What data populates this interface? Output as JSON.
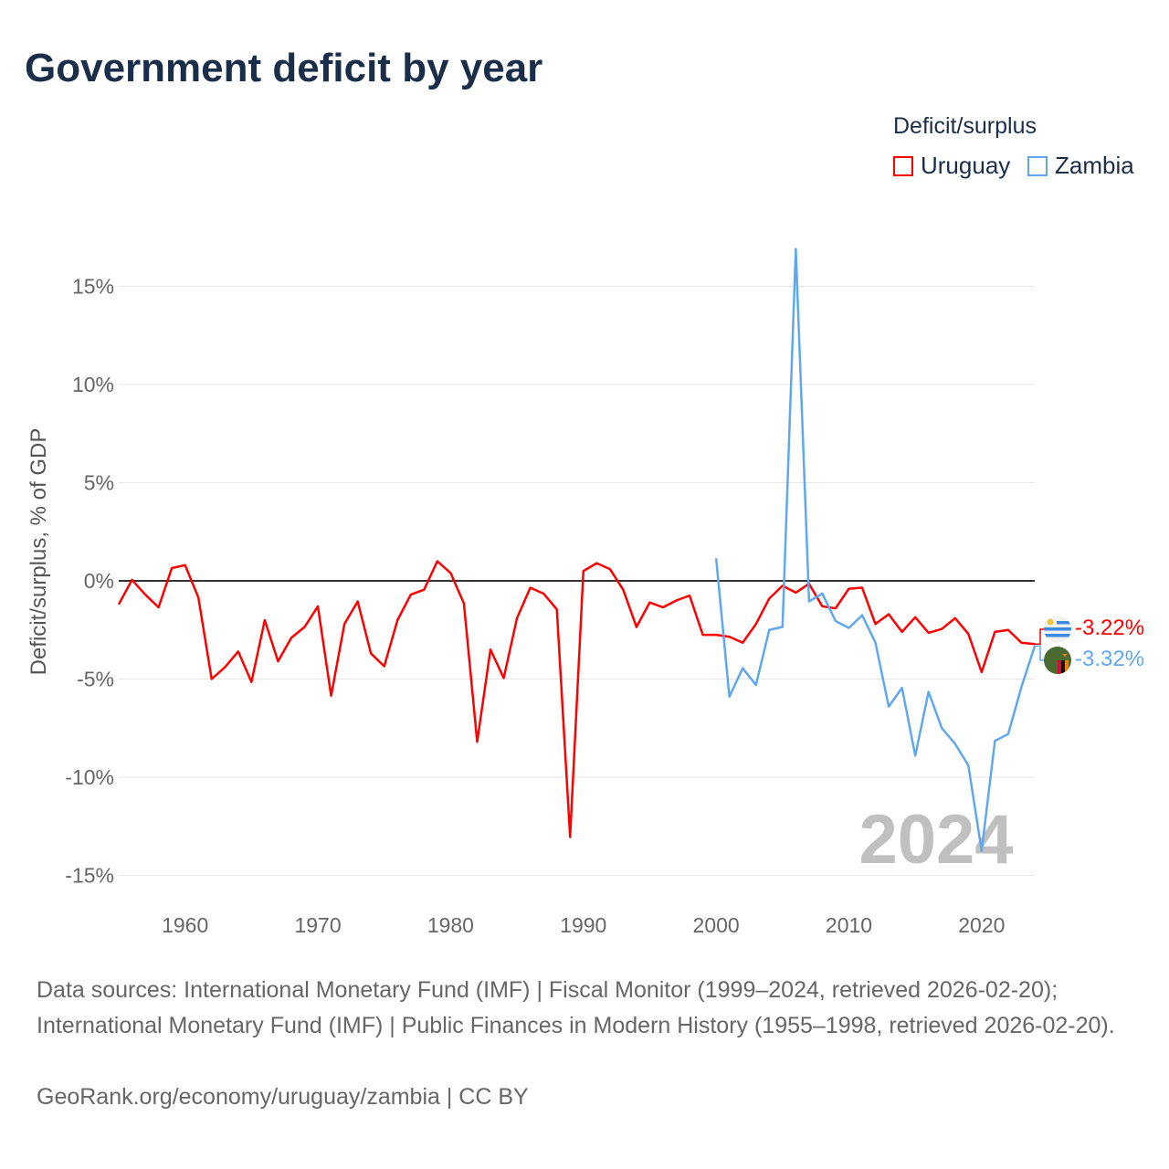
{
  "title": "Government deficit by year",
  "legend": {
    "title": "Deficit/surplus",
    "items": [
      {
        "name": "Uruguay",
        "color": "#ff0000"
      },
      {
        "name": "Zambia",
        "color": "#5fa8f0"
      }
    ]
  },
  "watermark_year": "2024",
  "end_labels": {
    "uruguay": "-3.22%",
    "zambia": "-3.32%"
  },
  "footer": {
    "sources": "Data sources: International Monetary Fund (IMF) | Fiscal Monitor (1999–2024, retrieved 2026-02-20); International Monetary Fund (IMF) | Public Finances in Modern History (1955–1998, retrieved 2026-02-20).",
    "credit": "GeoRank.org/economy/uruguay/zambia | CC BY"
  },
  "chart_data": {
    "type": "line",
    "title": "Government deficit by year",
    "xlabel": "",
    "ylabel": "Deficit/surplus, % of GDP",
    "xlim": [
      1955,
      2024
    ],
    "ylim": [
      -16,
      19
    ],
    "xticks": [
      1960,
      1970,
      1980,
      1990,
      2000,
      2010,
      2020
    ],
    "xtick_labels": [
      "1960",
      "1970",
      "1980",
      "1990",
      "2000",
      "2010",
      "2020"
    ],
    "yticks": [
      15,
      10,
      5,
      0,
      -5,
      -10,
      -15
    ],
    "ytick_labels": [
      "15%",
      "10%",
      "5%",
      "0%",
      "-5%",
      "-10%",
      "-15%"
    ],
    "grid": true,
    "legend_position": "top-right",
    "series": [
      {
        "name": "Uruguay",
        "color": "#ff0000",
        "start_year": 1955,
        "values": [
          -1.2,
          0.05,
          -0.7,
          -1.35,
          0.65,
          0.8,
          -0.85,
          -5.0,
          -4.4,
          -3.6,
          -5.15,
          -2.0,
          -4.1,
          -2.9,
          -2.35,
          -1.3,
          -5.85,
          -2.2,
          -1.05,
          -3.7,
          -4.35,
          -2.0,
          -0.7,
          -0.45,
          1.0,
          0.4,
          -1.15,
          -8.2,
          -3.5,
          -4.95,
          -1.9,
          -0.35,
          -0.65,
          -1.45,
          -13.05,
          0.5,
          0.9,
          0.6,
          -0.45,
          -2.35,
          -1.1,
          -1.35,
          -1.0,
          -0.75,
          -2.75,
          -2.75,
          -2.85,
          -3.15,
          -2.2,
          -0.9,
          -0.25,
          -0.6,
          -0.15,
          -1.3,
          -1.4,
          -0.4,
          -0.35,
          -2.2,
          -1.7,
          -2.6,
          -1.85,
          -2.65,
          -2.45,
          -1.9,
          -2.7,
          -4.65,
          -2.6,
          -2.5,
          -3.15,
          -3.22
        ]
      },
      {
        "name": "Zambia",
        "color": "#5fa8f0",
        "start_year": 2000,
        "values": [
          1.15,
          -5.9,
          -4.45,
          -5.3,
          -2.5,
          -2.35,
          16.9,
          -1.05,
          -0.65,
          -2.05,
          -2.4,
          -1.75,
          -3.15,
          -6.4,
          -5.45,
          -8.9,
          -5.65,
          -7.5,
          -8.3,
          -9.4,
          -13.75,
          -8.15,
          -7.8,
          -5.4,
          -3.32
        ]
      }
    ]
  }
}
